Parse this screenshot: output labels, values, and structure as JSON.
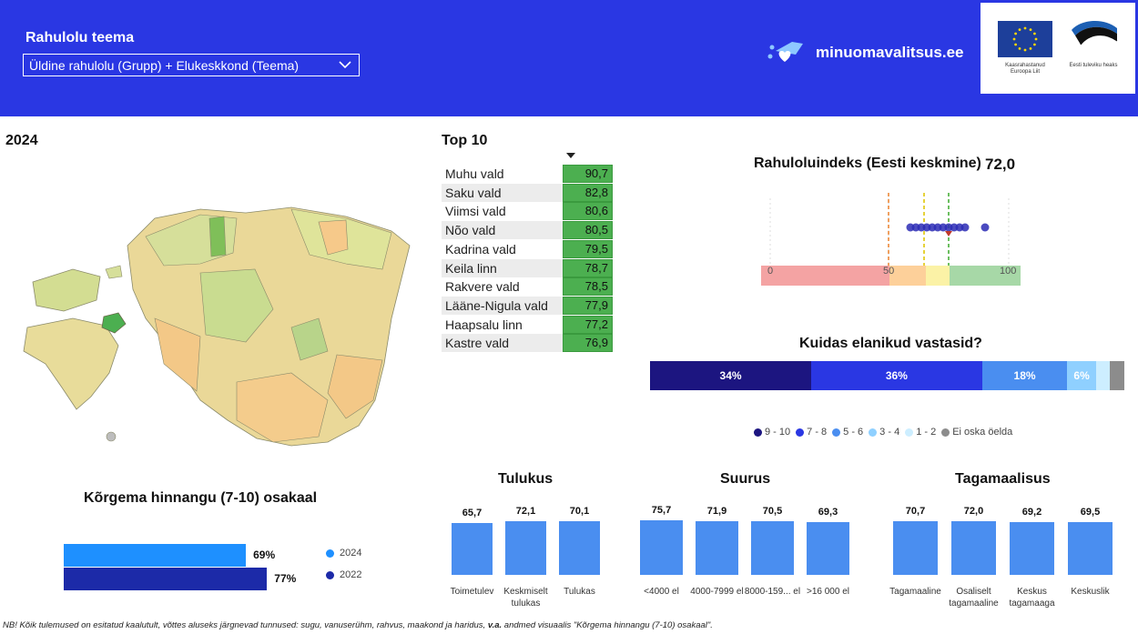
{
  "header": {
    "filter_label": "Rahulolu teema",
    "filter_value": "Üldine rahulolu (Grupp) + Elukeskkond (Teema)",
    "brand": "minuomavalitsus.ee",
    "eu_caption": "Kaasrahastanud Euroopa Liit",
    "ee_caption": "Eesti tuleviku heaks",
    "colors": {
      "header_bg": "#2a37e3"
    }
  },
  "map": {
    "year": "2024"
  },
  "top10": {
    "title": "Top 10",
    "rows": [
      {
        "name": "Muhu vald",
        "value": "90,7"
      },
      {
        "name": "Saku vald",
        "value": "82,8"
      },
      {
        "name": "Viimsi vald",
        "value": "80,6"
      },
      {
        "name": "Nõo vald",
        "value": "80,5"
      },
      {
        "name": "Kadrina vald",
        "value": "79,5"
      },
      {
        "name": "Keila linn",
        "value": "78,7"
      },
      {
        "name": "Rakvere vald",
        "value": "78,5"
      },
      {
        "name": "Lääne-Nigula vald",
        "value": "77,9"
      },
      {
        "name": "Haapsalu linn",
        "value": "77,2"
      },
      {
        "name": "Kastre vald",
        "value": "76,9"
      }
    ]
  },
  "index": {
    "title": "Rahuloluindeks (Eesti keskmine)",
    "value": "72,0",
    "axis": [
      "0",
      "50",
      "100"
    ]
  },
  "responses": {
    "title": "Kuidas elanikud vastasid?",
    "segments": [
      {
        "label": "34%",
        "share": 34,
        "color": "#1c1580"
      },
      {
        "label": "36%",
        "share": 36,
        "color": "#2a37e3"
      },
      {
        "label": "18%",
        "share": 18,
        "color": "#4a8ef0"
      },
      {
        "label": "6%",
        "share": 6,
        "color": "#8fd0ff"
      },
      {
        "label": "",
        "share": 3,
        "color": "#cdeeff"
      },
      {
        "label": "",
        "share": 3,
        "color": "#8c8c8c"
      }
    ],
    "legend": [
      {
        "label": "9 - 10",
        "color": "#1c1580"
      },
      {
        "label": "7 - 8",
        "color": "#2a37e3"
      },
      {
        "label": "5 - 6",
        "color": "#4a8ef0"
      },
      {
        "label": "3 - 4",
        "color": "#8fd0ff"
      },
      {
        "label": "1 - 2",
        "color": "#cdeeff"
      },
      {
        "label": "Ei oska öelda",
        "color": "#8c8c8c"
      }
    ]
  },
  "high_share": {
    "title": "Kõrgema hinnangu (7-10) osakaal",
    "bars": [
      {
        "year": "2024",
        "label": "69%",
        "value": 69,
        "color": "#1e90ff"
      },
      {
        "year": "2022",
        "label": "77%",
        "value": 77,
        "color": "#1c2aa8"
      }
    ]
  },
  "chart_data": [
    {
      "type": "bar",
      "title": "Tulukus",
      "categories": [
        "Toimetulev",
        "Keskmiselt tulukas",
        "Tulukas"
      ],
      "values": [
        65.7,
        72.1,
        70.1
      ],
      "labels": [
        "65,7",
        "72,1",
        "70,1"
      ]
    },
    {
      "type": "bar",
      "title": "Suurus",
      "categories": [
        "<4000 el",
        "4000-7999 el",
        "8000-159... el",
        ">16 000 el"
      ],
      "values": [
        75.7,
        71.9,
        70.5,
        69.3
      ],
      "labels": [
        "75,7",
        "71,9",
        "70,5",
        "69,3"
      ]
    },
    {
      "type": "bar",
      "title": "Tagamaalisus",
      "categories": [
        "Tagamaaline",
        "Osaliselt tagamaaline",
        "Keskus tagamaaga",
        "Keskuslik"
      ],
      "values": [
        70.7,
        72.0,
        69.2,
        69.5
      ],
      "labels": [
        "70,7",
        "72,0",
        "69,2",
        "69,5"
      ]
    }
  ],
  "footnote_prefix": "NB! Kõik tulemused on esitatud kaalutult, võttes aluseks järgnevad tunnused: sugu, vanuserühm, rahvus, maakond ja haridus, ",
  "footnote_bold": "v.a.",
  "footnote_suffix": " andmed visuaalis \"Kõrgema hinnangu (7-10) osakaal\"."
}
